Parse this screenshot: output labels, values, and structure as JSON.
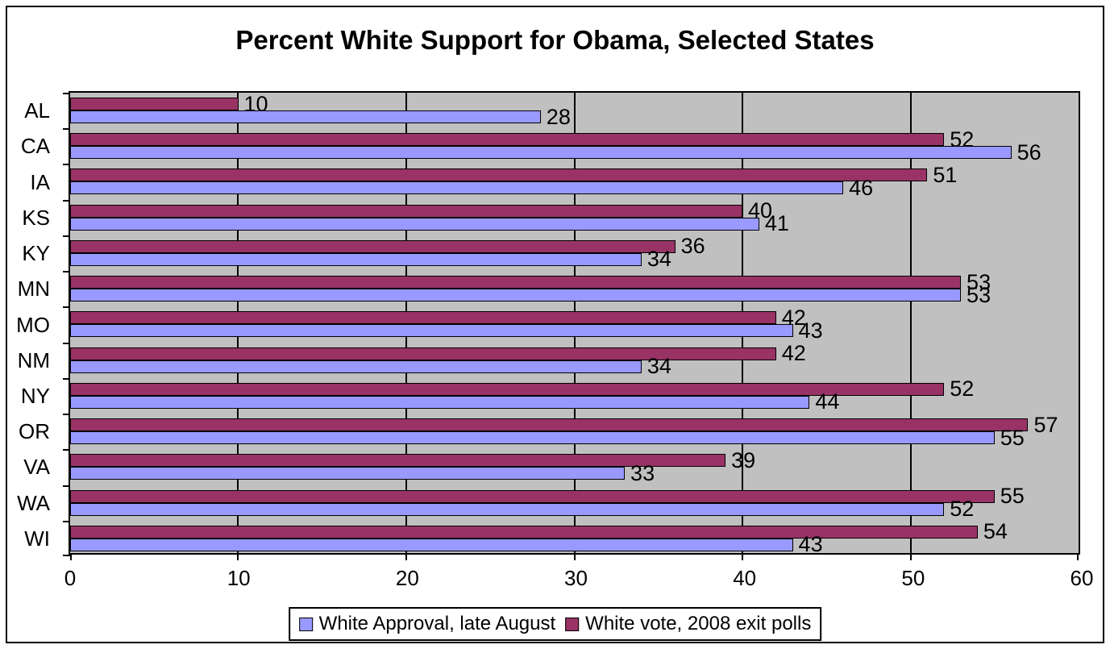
{
  "chart_data": {
    "type": "bar",
    "orientation": "horizontal",
    "title": "Percent White Support for Obama, Selected States",
    "categories": [
      "AL",
      "CA",
      "IA",
      "KS",
      "KY",
      "MN",
      "MO",
      "NM",
      "NY",
      "OR",
      "VA",
      "WA",
      "WI"
    ],
    "series": [
      {
        "name": "White Approval, late August",
        "color": "#9999FF",
        "border_color": "#000000",
        "values": [
          28,
          56,
          46,
          41,
          34,
          53,
          43,
          34,
          44,
          55,
          33,
          52,
          43
        ]
      },
      {
        "name": "White vote, 2008 exit polls",
        "color": "#993366",
        "border_color": "#000000",
        "values": [
          10,
          52,
          51,
          40,
          36,
          53,
          42,
          42,
          52,
          57,
          39,
          55,
          54
        ]
      }
    ],
    "bar_display_order_top_to_bottom": [
      1,
      0
    ],
    "xlim": [
      0,
      60
    ],
    "x_tick_values": [
      0,
      10,
      20,
      30,
      40,
      50,
      60
    ],
    "x_tick_labels": [
      "0",
      "10",
      "20",
      "30",
      "40",
      "50",
      "60"
    ],
    "grid": true,
    "data_labels": true,
    "legend_position": "bottom",
    "colors": {
      "plot_bg": "#C0C0C0",
      "gridline": "#000000",
      "chart_bg": "#FFFFFF",
      "frame_border": "#000000",
      "text": "#000000"
    }
  }
}
